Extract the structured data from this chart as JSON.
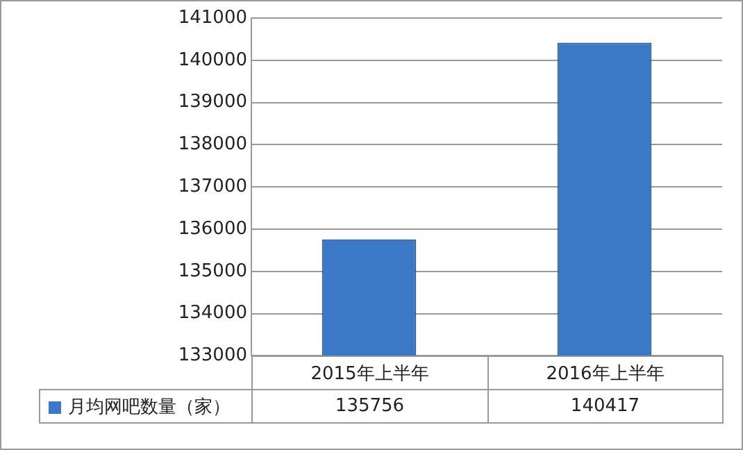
{
  "chart_data": {
    "type": "bar",
    "categories": [
      "2015年上半年",
      "2016年上半年"
    ],
    "series": [
      {
        "name": "月均网吧数量（家）",
        "color": "#3b78c6",
        "values": [
          135756,
          140417
        ]
      }
    ],
    "ylim": [
      133000,
      141000
    ],
    "yticks": [
      133000,
      134000,
      135000,
      136000,
      137000,
      138000,
      139000,
      140000,
      141000
    ],
    "grid": "y",
    "legend": "bottom left",
    "data_labels": true
  }
}
